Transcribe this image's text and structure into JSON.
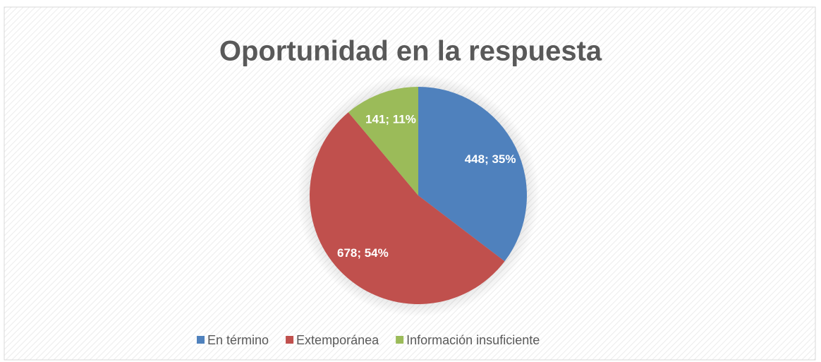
{
  "chart_data": {
    "type": "pie",
    "title": "Oportunidad en la respuesta",
    "categories": [
      "En término",
      "Extemporánea",
      "Información insuficiente"
    ],
    "values": [
      448,
      678,
      141
    ],
    "value_labels": [
      "448; 35%",
      "678; 54%",
      "141; 11%"
    ],
    "colors": [
      "#4f81bd",
      "#c0504d",
      "#9bbb59"
    ],
    "legend": "bottom"
  }
}
